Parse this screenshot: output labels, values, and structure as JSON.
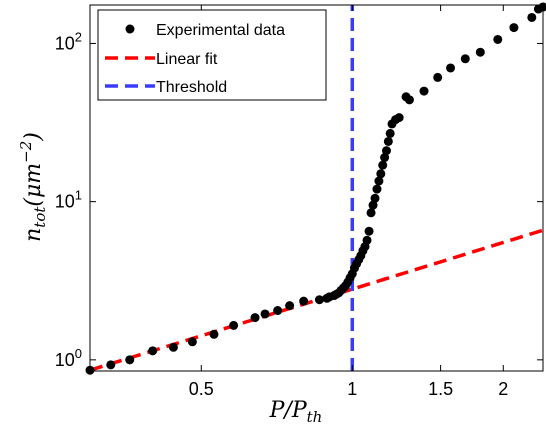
{
  "chart_data": {
    "type": "scatter",
    "xlabel": {
      "main": "P/P",
      "sub": "th"
    },
    "ylabel": {
      "main": "n",
      "sub": "tot",
      "rest": "(μm",
      "exp": "−2",
      "close": ")"
    },
    "x_scale": "log",
    "y_scale": "log",
    "xlim": [
      0.3,
      2.4
    ],
    "ylim": [
      0.85,
      175
    ],
    "x_ticks": [
      {
        "value": 0.5,
        "label": "0.5"
      },
      {
        "value": 1,
        "label": "1"
      },
      {
        "value": 1.5,
        "label": "1.5"
      },
      {
        "value": 2,
        "label": "2"
      }
    ],
    "y_ticks": [
      {
        "value": 1,
        "base": "10",
        "exp": "0"
      },
      {
        "value": 10,
        "base": "10",
        "exp": "1"
      },
      {
        "value": 100,
        "base": "10",
        "exp": "2"
      }
    ],
    "grid": false,
    "legend_position": "top-left",
    "series": [
      {
        "name": "Experimental data",
        "kind": "markers",
        "color": "#000000",
        "x": [
          0.3,
          0.33,
          0.36,
          0.4,
          0.44,
          0.48,
          0.53,
          0.58,
          0.64,
          0.67,
          0.71,
          0.75,
          0.8,
          0.86,
          0.89,
          0.9,
          0.92,
          0.93,
          0.94,
          0.95,
          0.96,
          0.97,
          0.98,
          0.99,
          1.0,
          1.01,
          1.02,
          1.03,
          1.04,
          1.05,
          1.06,
          1.07,
          1.08,
          1.09,
          1.1,
          1.11,
          1.12,
          1.13,
          1.14,
          1.15,
          1.16,
          1.17,
          1.18,
          1.19,
          1.2,
          1.22,
          1.24,
          1.28,
          1.3,
          1.39,
          1.48,
          1.57,
          1.68,
          1.8,
          1.95,
          2.1,
          2.28,
          2.35,
          2.4
        ],
        "y": [
          0.86,
          0.93,
          1.0,
          1.14,
          1.2,
          1.3,
          1.45,
          1.65,
          1.85,
          1.95,
          2.05,
          2.2,
          2.35,
          2.4,
          2.45,
          2.5,
          2.55,
          2.6,
          2.65,
          2.75,
          2.85,
          2.95,
          3.1,
          3.3,
          3.5,
          3.8,
          4.05,
          4.3,
          4.55,
          4.9,
          5.2,
          5.7,
          6.5,
          8.5,
          9.5,
          10.5,
          12.0,
          13.5,
          15.0,
          17.0,
          19.0,
          21.0,
          24.0,
          27.0,
          31.0,
          33.0,
          34.0,
          46.0,
          44.0,
          50.0,
          61.0,
          70.0,
          80.0,
          88.0,
          106.0,
          126.0,
          146.0,
          165.0,
          170.0
        ]
      },
      {
        "name": "Linear fit",
        "kind": "dashed-line",
        "color": "#ff0000",
        "x": [
          0.3,
          2.4
        ],
        "y": [
          0.86,
          6.6
        ]
      },
      {
        "name": "Threshold",
        "kind": "vertical-dashed-line",
        "color": "#3b3bff",
        "x": [
          1.0,
          1.0
        ],
        "y": [
          0.85,
          175
        ]
      }
    ]
  }
}
